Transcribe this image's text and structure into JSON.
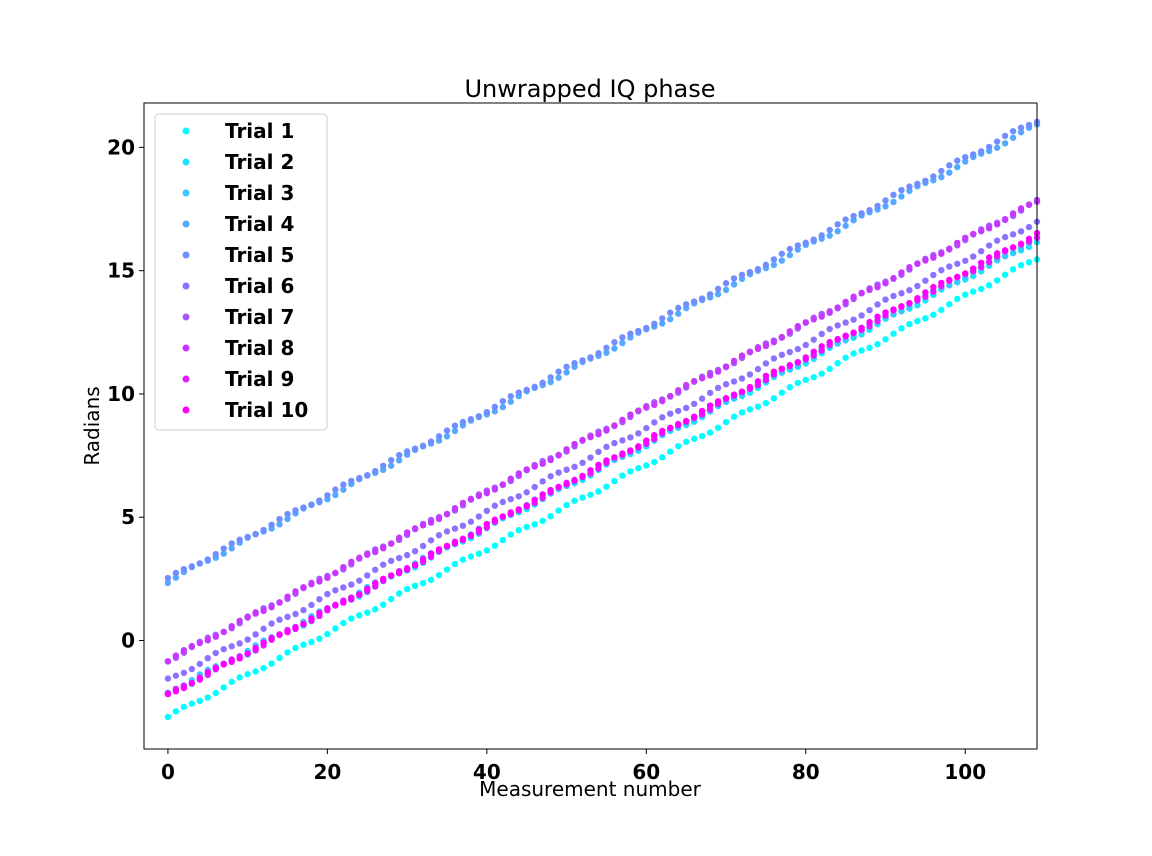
{
  "chart_data": {
    "type": "scatter",
    "title": "Unwrapped IQ phase",
    "xlabel": "Measurement number",
    "ylabel": "Radians",
    "xlim": [
      -3,
      109
    ],
    "ylim": [
      -4.4,
      21.8
    ],
    "xticks": [
      0,
      20,
      40,
      60,
      80,
      100
    ],
    "yticks": [
      0,
      5,
      10,
      15,
      20
    ],
    "grid": false,
    "legend_position": "top-left",
    "n_points": 110,
    "series": [
      {
        "name": "Trial 1",
        "color": "#00ffff",
        "start": -3.1,
        "end": 15.5
      },
      {
        "name": "Trial 2",
        "color": "#1ce3ff",
        "start": -2.2,
        "end": 16.2
      },
      {
        "name": "Trial 3",
        "color": "#38c7ff",
        "start": -2.1,
        "end": 16.3
      },
      {
        "name": "Trial 4",
        "color": "#55aaff",
        "start": 2.4,
        "end": 20.9
      },
      {
        "name": "Trial 5",
        "color": "#718eff",
        "start": 2.5,
        "end": 21.1
      },
      {
        "name": "Trial 6",
        "color": "#8e71ff",
        "start": -1.6,
        "end": 17.0
      },
      {
        "name": "Trial 7",
        "color": "#aa55ff",
        "start": -0.8,
        "end": 17.8
      },
      {
        "name": "Trial 8",
        "color": "#c738ff",
        "start": -0.8,
        "end": 17.8
      },
      {
        "name": "Trial 9",
        "color": "#e31cff",
        "start": -2.2,
        "end": 16.4
      },
      {
        "name": "Trial 10",
        "color": "#ff00ff",
        "start": -2.2,
        "end": 16.5
      }
    ]
  }
}
